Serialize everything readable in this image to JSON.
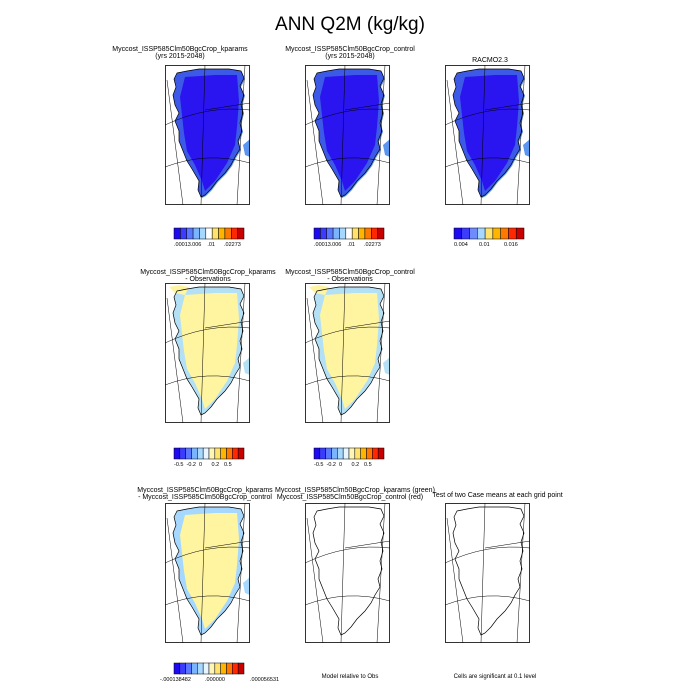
{
  "title": "ANN Q2M (kg/kg)",
  "panels": [
    {
      "id": "r1c1",
      "title_lines": [
        "Myccost_ISSP585Clm50BgcCrop_kparams",
        "(yrs 2015-2048)"
      ],
      "fill": "mean"
    },
    {
      "id": "r1c2",
      "title_lines": [
        "Myccost_ISSP585Clm50BgcCrop_control",
        "(yrs 2015-2048)"
      ],
      "fill": "mean"
    },
    {
      "id": "r1c3",
      "title_lines": [
        "RACMO2.3"
      ],
      "fill": "obs"
    },
    {
      "id": "r2c1",
      "title_lines": [
        "Myccost_ISSP585Clm50BgcCrop_kparams",
        "- Observations"
      ],
      "fill": "bias"
    },
    {
      "id": "r2c2",
      "title_lines": [
        "Myccost_ISSP585Clm50BgcCrop_control",
        "- Observations"
      ],
      "fill": "bias"
    },
    {
      "id": "r3c1",
      "title_lines": [
        "Myccost_ISSP585Clm50BgcCrop_kparams",
        "- Myccost_ISSP585Clm50BgcCrop_control"
      ],
      "fill": "diff"
    },
    {
      "id": "r3c2",
      "title_lines": [
        "Myccost_ISSP585Clm50BgcCrop_kparams (green)",
        "Myccost_ISSP585Clm50BgcCrop_control (red)"
      ],
      "fill": "none"
    },
    {
      "id": "r3c3",
      "title_lines": [
        "Test of two Case means at each grid point"
      ],
      "fill": "none"
    }
  ],
  "colorbars": [
    {
      "id": "cb1",
      "colors": [
        "#1e0af0",
        "#3c3cff",
        "#5a78ff",
        "#7ab4ff",
        "#a6d8ff",
        "#ffffff",
        "#ffe36e",
        "#ffb400",
        "#ff7800",
        "#ff2800",
        "#c80000"
      ],
      "labels": [
        ".00013",
        ".006",
        ".01",
        ".02273"
      ]
    },
    {
      "id": "cb2",
      "colors": [
        "#1e0af0",
        "#3c3cff",
        "#5a78ff",
        "#7ab4ff",
        "#a6d8ff",
        "#ffffff",
        "#ffe36e",
        "#ffb400",
        "#ff7800",
        "#ff2800",
        "#c80000"
      ],
      "labels": [
        ".00013",
        ".006",
        ".01",
        ".02273"
      ]
    },
    {
      "id": "cb3",
      "colors": [
        "#1e0af0",
        "#3c3cff",
        "#6e8cff",
        "#a6d8ff",
        "#ffe36e",
        "#ffb400",
        "#ff7800",
        "#ff2800",
        "#c80000"
      ],
      "labels": [
        "0.004",
        "0.01",
        "0.016"
      ]
    },
    {
      "id": "cb4",
      "colors": [
        "#1e0af0",
        "#3c3cff",
        "#5a78ff",
        "#7ab4ff",
        "#a6d8ff",
        "#e6f5ff",
        "#fff5b4",
        "#ffe36e",
        "#ffb400",
        "#ff7800",
        "#ff2800",
        "#c80000"
      ],
      "labels": [
        "-0.5",
        "-0.2",
        "0",
        "0.2",
        "0.5"
      ]
    },
    {
      "id": "cb5",
      "colors": [
        "#1e0af0",
        "#3c3cff",
        "#5a78ff",
        "#7ab4ff",
        "#a6d8ff",
        "#e6f5ff",
        "#fff5b4",
        "#ffe36e",
        "#ffb400",
        "#ff7800",
        "#ff2800",
        "#c80000"
      ],
      "labels": [
        "-0.5",
        "-0.2",
        "0",
        "0.2",
        "0.5"
      ]
    },
    {
      "id": "cb6",
      "colors": [
        "#1e0af0",
        "#3c3cff",
        "#5a78ff",
        "#7ab4ff",
        "#a6d8ff",
        "#e6f5ff",
        "#fff5b4",
        "#ffe36e",
        "#ffb400",
        "#ff7800",
        "#ff2800",
        "#c80000"
      ],
      "labels": [
        "-.000138482",
        ".000000",
        ".000056531"
      ]
    }
  ],
  "notes": {
    "model_relative": "Model relative to Obs",
    "significance": "Cells are significant at 0.1 level"
  },
  "colors": {
    "mean_ice": "#2a14f0",
    "mean_coast": "#3c5ae6",
    "mean_margin": "#5a96f0",
    "bias_land": "#fff5a0",
    "bias_margin": "#b4e0f5",
    "diff_land": "#fff5a0",
    "diff_margin": "#a6d8ff"
  }
}
